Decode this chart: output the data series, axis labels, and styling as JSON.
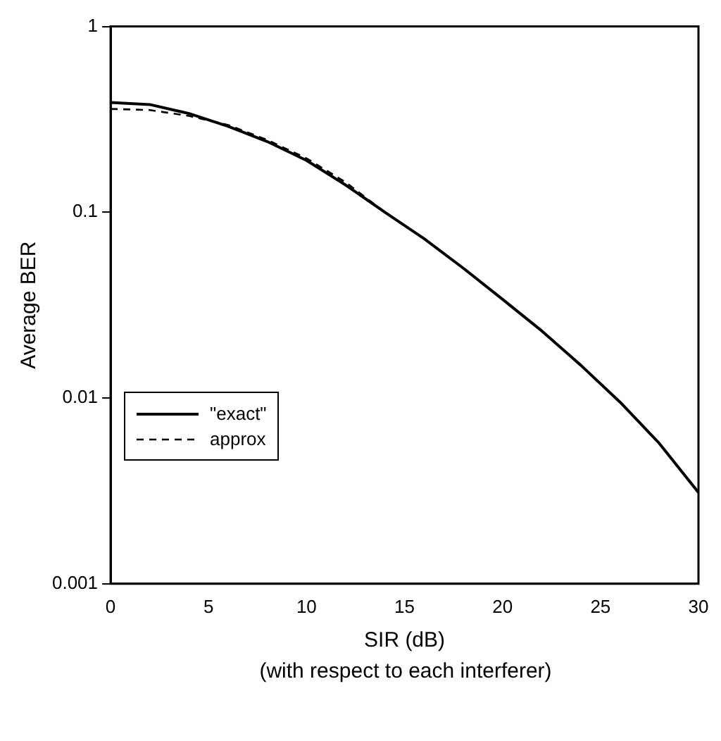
{
  "chart_data": {
    "type": "line",
    "xlabel": "SIR (dB)",
    "ylabel": "Average BER",
    "annotations": [
      "(with respect to each interferer)"
    ],
    "x": [
      0,
      2,
      4,
      6,
      8,
      10,
      12,
      14,
      16,
      18,
      20,
      22,
      24,
      26,
      28,
      30
    ],
    "series": [
      {
        "name": "\"exact\"",
        "color": "#000000",
        "line_style": "solid",
        "values": [
          0.39,
          0.38,
          0.34,
          0.29,
          0.24,
          0.19,
          0.14,
          0.1,
          0.072,
          0.05,
          0.034,
          0.023,
          0.015,
          0.0095,
          0.0057,
          0.0031
        ]
      },
      {
        "name": "approx",
        "color": "#000000",
        "line_style": "dashed",
        "values": [
          0.36,
          0.355,
          0.33,
          0.295,
          0.245,
          0.195,
          0.145,
          0.1,
          0.072,
          0.05,
          0.034,
          0.023,
          0.015,
          0.0095,
          0.0057,
          0.0031
        ]
      }
    ],
    "log": "y",
    "xlim": [
      0,
      30
    ],
    "xticks": [
      0,
      5,
      10,
      15,
      20,
      25,
      30
    ],
    "ylim": [
      0.001,
      1
    ],
    "yticks": [
      0.001,
      0.01,
      0.1,
      1
    ],
    "grid": false,
    "legend": "bottom left",
    "marker": "none"
  }
}
